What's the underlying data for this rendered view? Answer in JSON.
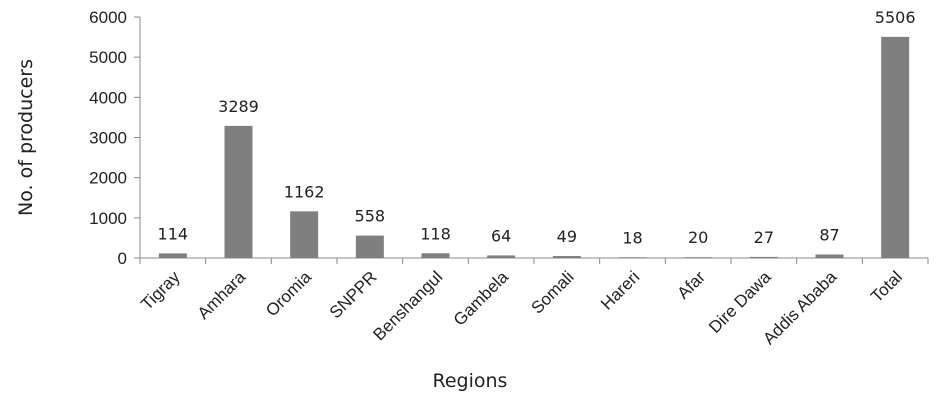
{
  "chart_data": {
    "type": "bar",
    "title": "",
    "xlabel": "Regions",
    "ylabel": "No. of producers",
    "ylim": [
      0,
      6000
    ],
    "yticks": [
      0,
      1000,
      2000,
      3000,
      4000,
      5000,
      6000
    ],
    "grid": false,
    "legend": "none",
    "bar_color": "#7f7f7f",
    "categories": [
      "Tigray",
      "Amhara",
      "Oromia",
      "SNPPR",
      "Benshangul",
      "Gambela",
      "Somali",
      "Hareri",
      "Afar",
      "Dire Dawa",
      "Addis Ababa",
      "Total"
    ],
    "values": [
      114,
      3289,
      1162,
      558,
      118,
      64,
      49,
      18,
      20,
      27,
      87,
      5506
    ]
  }
}
